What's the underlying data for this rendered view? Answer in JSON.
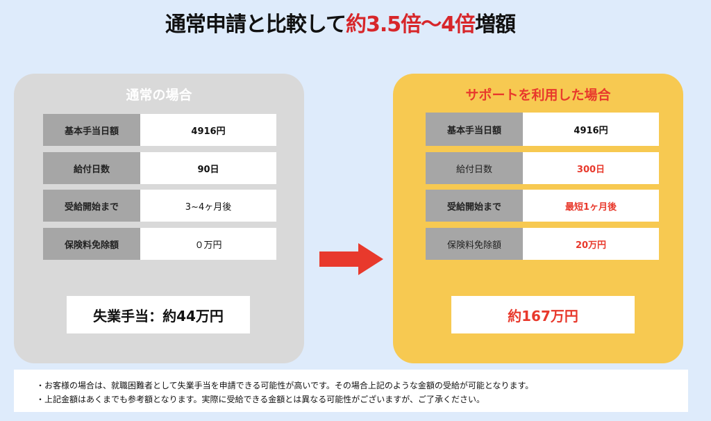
{
  "title": {
    "main": "通常申請と比較して",
    "highlight": "約3.5倍〜4倍",
    "suffix": "増額"
  },
  "left": {
    "heading": "通常の場合",
    "rows": [
      {
        "label": "基本手当日額",
        "value": "4916円"
      },
      {
        "label": "給付日数",
        "value": "90日"
      },
      {
        "label": "受給開始まで",
        "value": "3~4ヶ月後"
      },
      {
        "label": "保険料免除額",
        "value": "０万円"
      }
    ],
    "total": "失業手当：約44万円"
  },
  "right": {
    "heading": "サポートを利用した場合",
    "rows": [
      {
        "label": "基本手当日額",
        "value": "4916円"
      },
      {
        "label": "給付日数",
        "value": "300日"
      },
      {
        "label": "受給開始まで",
        "value": "最短1ヶ月後"
      },
      {
        "label": "保険料免除額",
        "value": "20万円"
      }
    ],
    "total": "約167万円"
  },
  "arrow": {
    "icon": "right-arrow-icon",
    "color": "#e8392c"
  },
  "notes": [
    "・お客様の場合は、就職困難者として失業手当を申請できる可能性が高いです。その場合上記のような金額の受給が可能となります。",
    "・上記金額はあくまでも参考額となります。実際に受給できる金額とは異なる可能性がございますが、ご了承ください。"
  ]
}
